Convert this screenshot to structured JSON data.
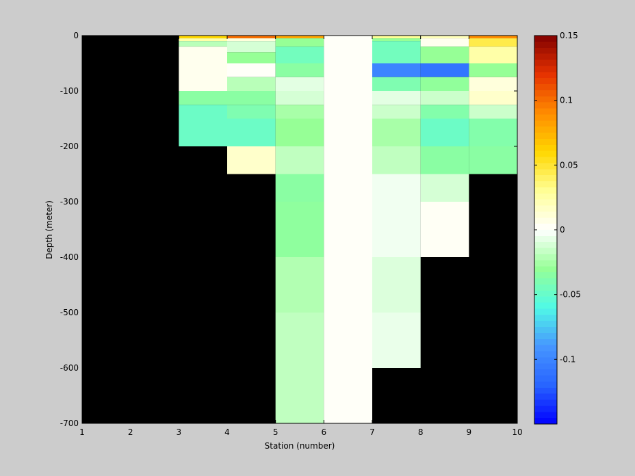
{
  "chart_data": {
    "type": "heatmap",
    "title": "",
    "xlabel": "Station (number)",
    "ylabel": "Depth (meter)",
    "xlim": [
      1,
      10
    ],
    "ylim": [
      -700,
      0
    ],
    "xticks": [
      "1",
      "2",
      "3",
      "4",
      "5",
      "6",
      "7",
      "8",
      "9",
      "10"
    ],
    "yticks": [
      {
        "value": 0,
        "label": "0"
      },
      {
        "value": -100,
        "label": "-100"
      },
      {
        "value": -200,
        "label": "-200"
      },
      {
        "value": -300,
        "label": "-300"
      },
      {
        "value": -400,
        "label": "-400"
      },
      {
        "value": -500,
        "label": "-500"
      },
      {
        "value": -600,
        "label": "-600"
      },
      {
        "value": -700,
        "label": "-700"
      }
    ],
    "background_color": "#000000",
    "colorbar": {
      "limits": [
        -0.15,
        0.15
      ],
      "ticks": [
        {
          "value": 0.15,
          "label": "0.15"
        },
        {
          "value": 0.1,
          "label": "0.1"
        },
        {
          "value": 0.05,
          "label": "0.05"
        },
        {
          "value": 0,
          "label": "0"
        },
        {
          "value": -0.05,
          "label": "-0.05"
        },
        {
          "value": -0.1,
          "label": "-0.1"
        }
      ],
      "colormap": "jet-white-center"
    },
    "cells": [
      {
        "x0": 3,
        "x1": 4,
        "top": 0,
        "bottom": -5,
        "value": 0.06
      },
      {
        "x0": 3,
        "x1": 4,
        "top": -5,
        "bottom": -10,
        "value": 0.025
      },
      {
        "x0": 3,
        "x1": 4,
        "top": -10,
        "bottom": -20,
        "value": -0.02
      },
      {
        "x0": 3,
        "x1": 4,
        "top": -20,
        "bottom": -100,
        "value": 0.005
      },
      {
        "x0": 3,
        "x1": 4,
        "top": -100,
        "bottom": -125,
        "value": -0.035
      },
      {
        "x0": 3,
        "x1": 4,
        "top": -125,
        "bottom": -200,
        "value": -0.048
      },
      {
        "x0": 4,
        "x1": 5,
        "top": 0,
        "bottom": -5,
        "value": 0.1
      },
      {
        "x0": 4,
        "x1": 5,
        "top": -5,
        "bottom": -10,
        "value": 0.01
      },
      {
        "x0": 4,
        "x1": 5,
        "top": -10,
        "bottom": -30,
        "value": -0.012
      },
      {
        "x0": 4,
        "x1": 5,
        "top": -30,
        "bottom": -50,
        "value": -0.03
      },
      {
        "x0": 4,
        "x1": 5,
        "top": -50,
        "bottom": -75,
        "value": 0.002
      },
      {
        "x0": 4,
        "x1": 5,
        "top": -75,
        "bottom": -100,
        "value": -0.02
      },
      {
        "x0": 4,
        "x1": 5,
        "top": -100,
        "bottom": -125,
        "value": -0.035
      },
      {
        "x0": 4,
        "x1": 5,
        "top": -125,
        "bottom": -150,
        "value": -0.04
      },
      {
        "x0": 4,
        "x1": 5,
        "top": -150,
        "bottom": -200,
        "value": -0.048
      },
      {
        "x0": 4,
        "x1": 5,
        "top": -200,
        "bottom": -250,
        "value": 0.015
      },
      {
        "x0": 5,
        "x1": 6,
        "top": 0,
        "bottom": -5,
        "value": 0.08
      },
      {
        "x0": 5,
        "x1": 6,
        "top": -5,
        "bottom": -20,
        "value": -0.03
      },
      {
        "x0": 5,
        "x1": 6,
        "top": -20,
        "bottom": -50,
        "value": -0.045
      },
      {
        "x0": 5,
        "x1": 6,
        "top": -50,
        "bottom": -75,
        "value": -0.035
      },
      {
        "x0": 5,
        "x1": 6,
        "top": -75,
        "bottom": -100,
        "value": -0.008
      },
      {
        "x0": 5,
        "x1": 6,
        "top": -100,
        "bottom": -125,
        "value": -0.012
      },
      {
        "x0": 5,
        "x1": 6,
        "top": -125,
        "bottom": -150,
        "value": -0.025
      },
      {
        "x0": 5,
        "x1": 6,
        "top": -150,
        "bottom": -200,
        "value": -0.03
      },
      {
        "x0": 5,
        "x1": 6,
        "top": -200,
        "bottom": -250,
        "value": -0.018
      },
      {
        "x0": 5,
        "x1": 6,
        "top": -250,
        "bottom": -300,
        "value": -0.035
      },
      {
        "x0": 5,
        "x1": 6,
        "top": -300,
        "bottom": -400,
        "value": -0.033
      },
      {
        "x0": 5,
        "x1": 6,
        "top": -400,
        "bottom": -500,
        "value": -0.022
      },
      {
        "x0": 5,
        "x1": 6,
        "top": -500,
        "bottom": -700,
        "value": -0.018
      },
      {
        "x0": 6,
        "x1": 7,
        "top": 0,
        "bottom": -700,
        "value": 0.002
      },
      {
        "x0": 7,
        "x1": 8,
        "top": 0,
        "bottom": -5,
        "value": 0.03
      },
      {
        "x0": 7,
        "x1": 8,
        "top": -5,
        "bottom": -10,
        "value": -0.03
      },
      {
        "x0": 7,
        "x1": 8,
        "top": -10,
        "bottom": -50,
        "value": -0.045
      },
      {
        "x0": 7,
        "x1": 8,
        "top": -50,
        "bottom": -75,
        "value": -0.1
      },
      {
        "x0": 7,
        "x1": 8,
        "top": -75,
        "bottom": -100,
        "value": -0.04
      },
      {
        "x0": 7,
        "x1": 8,
        "top": -100,
        "bottom": -125,
        "value": -0.008
      },
      {
        "x0": 7,
        "x1": 8,
        "top": -125,
        "bottom": -150,
        "value": -0.015
      },
      {
        "x0": 7,
        "x1": 8,
        "top": -150,
        "bottom": -200,
        "value": -0.025
      },
      {
        "x0": 7,
        "x1": 8,
        "top": -200,
        "bottom": -250,
        "value": -0.018
      },
      {
        "x0": 7,
        "x1": 8,
        "top": -250,
        "bottom": -400,
        "value": -0.004
      },
      {
        "x0": 7,
        "x1": 8,
        "top": -400,
        "bottom": -500,
        "value": -0.01
      },
      {
        "x0": 7,
        "x1": 8,
        "top": -500,
        "bottom": -600,
        "value": -0.006
      },
      {
        "x0": 8,
        "x1": 9,
        "top": 0,
        "bottom": -5,
        "value": 0.02
      },
      {
        "x0": 8,
        "x1": 9,
        "top": -5,
        "bottom": -20,
        "value": 0.005
      },
      {
        "x0": 8,
        "x1": 9,
        "top": -20,
        "bottom": -50,
        "value": -0.03
      },
      {
        "x0": 8,
        "x1": 9,
        "top": -50,
        "bottom": -75,
        "value": -0.11
      },
      {
        "x0": 8,
        "x1": 9,
        "top": -75,
        "bottom": -100,
        "value": -0.032
      },
      {
        "x0": 8,
        "x1": 9,
        "top": -100,
        "bottom": -125,
        "value": -0.015
      },
      {
        "x0": 8,
        "x1": 9,
        "top": -125,
        "bottom": -150,
        "value": -0.038
      },
      {
        "x0": 8,
        "x1": 9,
        "top": -150,
        "bottom": -200,
        "value": -0.048
      },
      {
        "x0": 8,
        "x1": 9,
        "top": -200,
        "bottom": -250,
        "value": -0.035
      },
      {
        "x0": 8,
        "x1": 9,
        "top": -250,
        "bottom": -300,
        "value": -0.012
      },
      {
        "x0": 8,
        "x1": 9,
        "top": -300,
        "bottom": -400,
        "value": 0.003
      },
      {
        "x0": 9,
        "x1": 10,
        "top": 0,
        "bottom": -5,
        "value": 0.09
      },
      {
        "x0": 9,
        "x1": 10,
        "top": -5,
        "bottom": -20,
        "value": 0.045
      },
      {
        "x0": 9,
        "x1": 10,
        "top": -20,
        "bottom": -50,
        "value": 0.025
      },
      {
        "x0": 9,
        "x1": 10,
        "top": -50,
        "bottom": -75,
        "value": -0.03
      },
      {
        "x0": 9,
        "x1": 10,
        "top": -75,
        "bottom": -100,
        "value": 0.01
      },
      {
        "x0": 9,
        "x1": 10,
        "top": -100,
        "bottom": -125,
        "value": 0.015
      },
      {
        "x0": 9,
        "x1": 10,
        "top": -125,
        "bottom": -150,
        "value": -0.015
      },
      {
        "x0": 9,
        "x1": 10,
        "top": -150,
        "bottom": -200,
        "value": -0.038
      },
      {
        "x0": 9,
        "x1": 10,
        "top": -200,
        "bottom": -250,
        "value": -0.035
      }
    ]
  }
}
